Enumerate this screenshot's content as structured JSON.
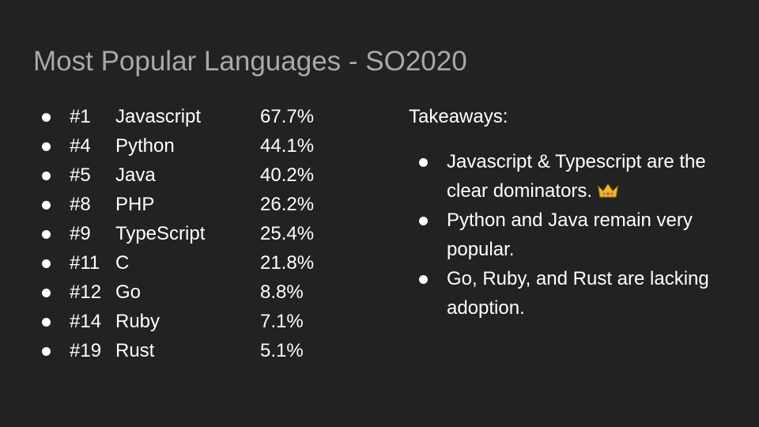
{
  "title": "Most Popular Languages - SO2020",
  "languages": [
    {
      "rank": "#1",
      "name": "Javascript",
      "share": "67.7%"
    },
    {
      "rank": "#4",
      "name": "Python",
      "share": "44.1%"
    },
    {
      "rank": "#5",
      "name": "Java",
      "share": "40.2%"
    },
    {
      "rank": "#8",
      "name": "PHP",
      "share": "26.2%"
    },
    {
      "rank": "#9",
      "name": "TypeScript",
      "share": "25.4%"
    },
    {
      "rank": "#11",
      "name": "C",
      "share": "21.8%"
    },
    {
      "rank": "#12",
      "name": "Go",
      "share": "8.8%"
    },
    {
      "rank": "#14",
      "name": "Ruby",
      "share": "7.1%"
    },
    {
      "rank": "#19",
      "name": "Rust",
      "share": "5.1%"
    }
  ],
  "takeaways": {
    "heading": "Takeaways:",
    "items": [
      "Javascript & Typescript are the clear dominators.",
      "Python and Java remain very popular.",
      "Go, Ruby, and Rust are lacking adoption."
    ]
  }
}
